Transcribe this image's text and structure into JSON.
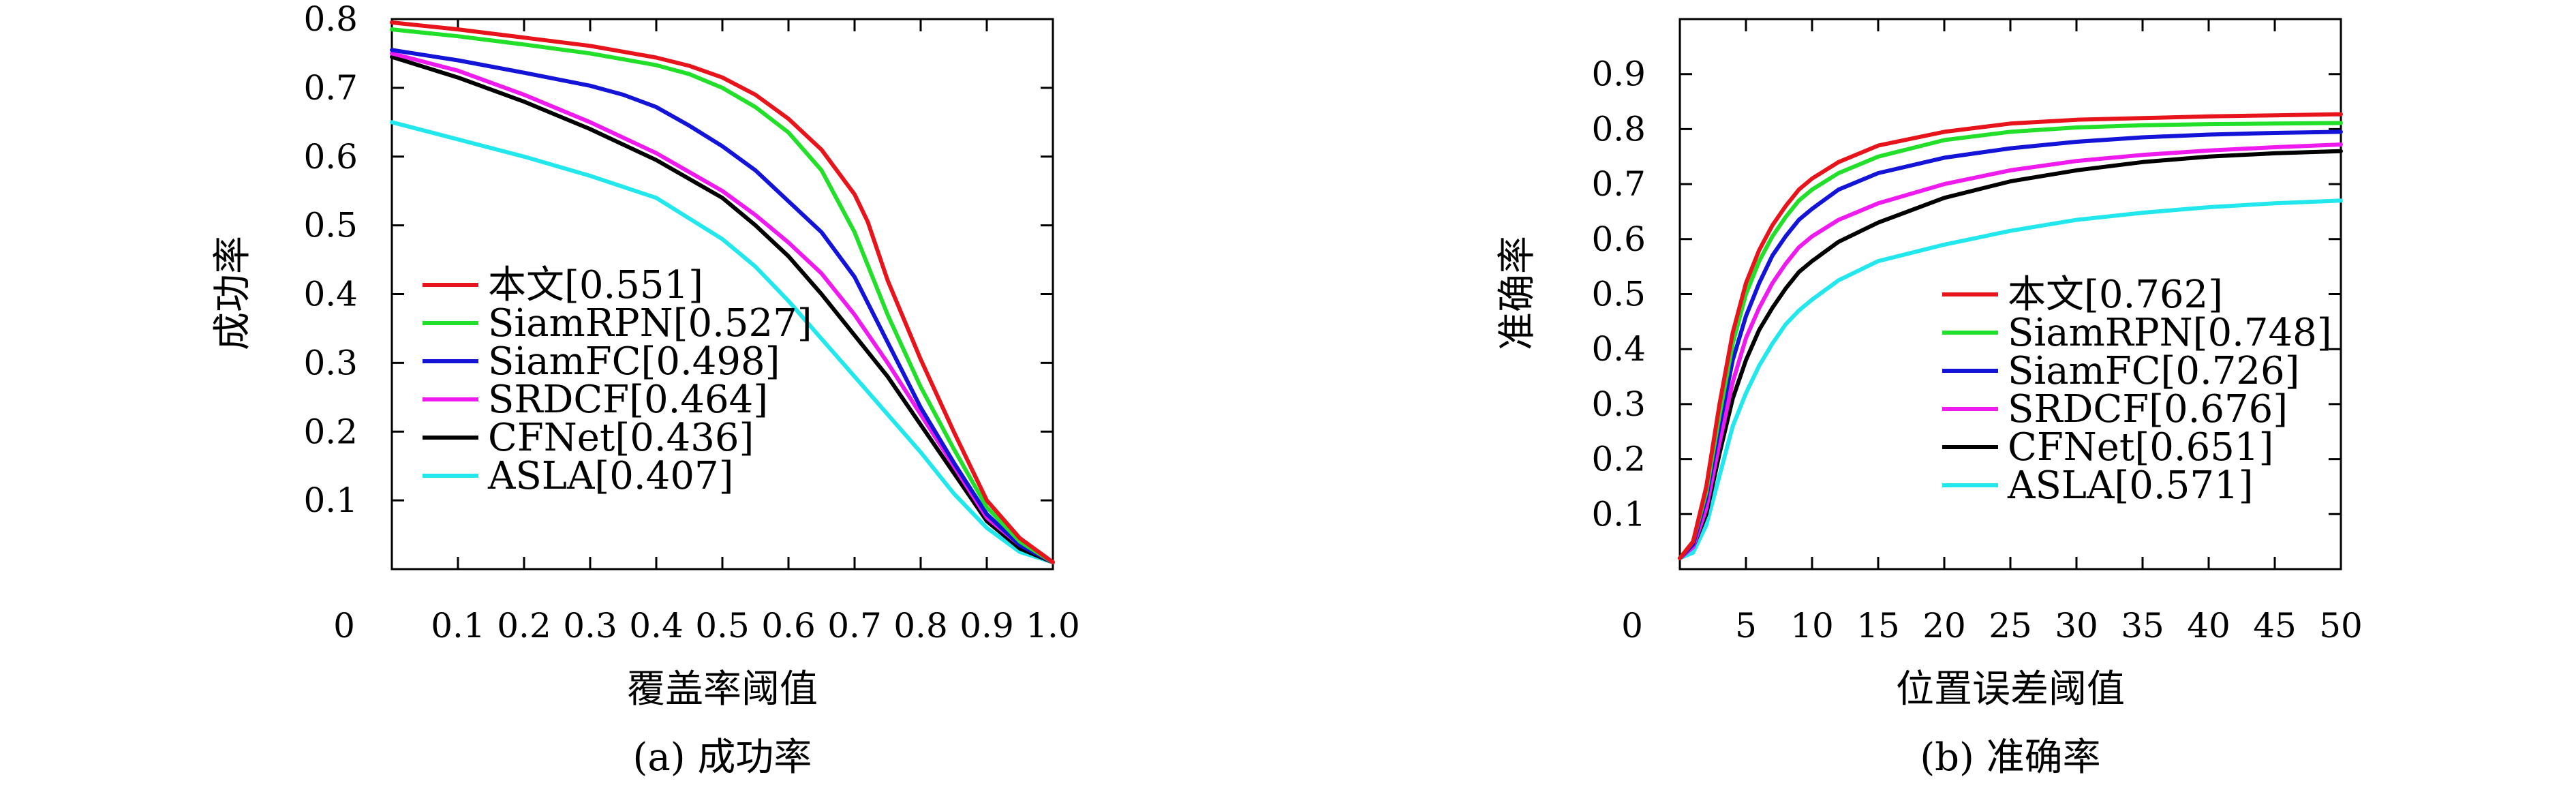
{
  "chart_data": [
    {
      "type": "line",
      "caption": "(a) 成功率",
      "xlabel": "覆盖率阈值",
      "ylabel": "成功率",
      "xlim": [
        0,
        1.0
      ],
      "ylim": [
        0,
        0.8
      ],
      "x_origin_label": "0",
      "xticks": [
        "0.1",
        "0.2",
        "0.3",
        "0.4",
        "0.5",
        "0.6",
        "0.7",
        "0.8",
        "0.9",
        "1.0"
      ],
      "yticks": [
        "0.1",
        "0.2",
        "0.3",
        "0.4",
        "0.5",
        "0.6",
        "0.7",
        "0.8"
      ],
      "grid": false,
      "legend_position": "lower-left",
      "series": [
        {
          "name": "本文[0.551]",
          "color": "#e8141b",
          "x": [
            0,
            0.1,
            0.2,
            0.3,
            0.4,
            0.45,
            0.5,
            0.55,
            0.6,
            0.65,
            0.7,
            0.72,
            0.75,
            0.8,
            0.85,
            0.9,
            0.95,
            1.0
          ],
          "y": [
            0.795,
            0.785,
            0.773,
            0.761,
            0.744,
            0.732,
            0.715,
            0.69,
            0.655,
            0.61,
            0.545,
            0.505,
            0.42,
            0.305,
            0.2,
            0.1,
            0.045,
            0.01
          ]
        },
        {
          "name": "SiamRPN[0.527]",
          "color": "#22e02a",
          "x": [
            0,
            0.1,
            0.2,
            0.3,
            0.4,
            0.45,
            0.5,
            0.55,
            0.6,
            0.65,
            0.7,
            0.75,
            0.8,
            0.85,
            0.9,
            0.95,
            1.0
          ],
          "y": [
            0.785,
            0.775,
            0.763,
            0.75,
            0.733,
            0.72,
            0.7,
            0.672,
            0.635,
            0.58,
            0.49,
            0.37,
            0.265,
            0.175,
            0.09,
            0.04,
            0.01
          ]
        },
        {
          "name": "SiamFC[0.498]",
          "color": "#1414d8",
          "x": [
            0,
            0.1,
            0.2,
            0.3,
            0.35,
            0.4,
            0.45,
            0.5,
            0.55,
            0.6,
            0.65,
            0.7,
            0.75,
            0.8,
            0.85,
            0.9,
            0.95,
            1.0
          ],
          "y": [
            0.755,
            0.74,
            0.722,
            0.703,
            0.69,
            0.672,
            0.645,
            0.615,
            0.58,
            0.535,
            0.49,
            0.425,
            0.33,
            0.235,
            0.155,
            0.08,
            0.035,
            0.01
          ]
        },
        {
          "name": "SRDCF[0.464]",
          "color": "#ee1aee",
          "x": [
            0,
            0.1,
            0.2,
            0.3,
            0.4,
            0.5,
            0.55,
            0.6,
            0.65,
            0.7,
            0.75,
            0.8,
            0.85,
            0.9,
            0.95,
            1.0
          ],
          "y": [
            0.75,
            0.725,
            0.69,
            0.65,
            0.605,
            0.55,
            0.515,
            0.475,
            0.43,
            0.37,
            0.3,
            0.225,
            0.15,
            0.075,
            0.035,
            0.01
          ]
        },
        {
          "name": "CFNet[0.436]",
          "color": "#000000",
          "x": [
            0,
            0.1,
            0.2,
            0.3,
            0.4,
            0.5,
            0.55,
            0.6,
            0.65,
            0.7,
            0.75,
            0.8,
            0.85,
            0.9,
            0.95,
            1.0
          ],
          "y": [
            0.745,
            0.715,
            0.68,
            0.64,
            0.595,
            0.54,
            0.5,
            0.455,
            0.4,
            0.34,
            0.28,
            0.21,
            0.14,
            0.07,
            0.03,
            0.01
          ]
        },
        {
          "name": "ASLA[0.407]",
          "color": "#22e8ee",
          "x": [
            0,
            0.1,
            0.2,
            0.3,
            0.4,
            0.5,
            0.55,
            0.6,
            0.65,
            0.7,
            0.75,
            0.8,
            0.85,
            0.9,
            0.95,
            1.0
          ],
          "y": [
            0.65,
            0.625,
            0.6,
            0.572,
            0.54,
            0.48,
            0.44,
            0.39,
            0.335,
            0.28,
            0.225,
            0.17,
            0.11,
            0.06,
            0.025,
            0.01
          ]
        }
      ]
    },
    {
      "type": "line",
      "caption": "(b) 准确率",
      "xlabel": "位置误差阈值",
      "ylabel": "准确率",
      "xlim": [
        0,
        50
      ],
      "ylim": [
        0,
        1.0
      ],
      "x_origin_label": "0",
      "xticks": [
        "5",
        "10",
        "15",
        "20",
        "25",
        "30",
        "35",
        "40",
        "45",
        "50"
      ],
      "yticks": [
        "0.1",
        "0.2",
        "0.3",
        "0.4",
        "0.5",
        "0.6",
        "0.7",
        "0.8",
        "0.9"
      ],
      "grid": false,
      "legend_position": "lower-right",
      "series": [
        {
          "name": "本文[0.762]",
          "color": "#e8141b",
          "x": [
            0,
            1,
            2,
            3,
            4,
            5,
            6,
            7,
            8,
            9,
            10,
            12,
            15,
            20,
            25,
            30,
            35,
            40,
            45,
            50
          ],
          "y": [
            0.02,
            0.05,
            0.15,
            0.3,
            0.43,
            0.52,
            0.58,
            0.625,
            0.66,
            0.69,
            0.71,
            0.74,
            0.77,
            0.795,
            0.81,
            0.817,
            0.82,
            0.823,
            0.825,
            0.827
          ]
        },
        {
          "name": "SiamRPN[0.748]",
          "color": "#22e02a",
          "x": [
            0,
            1,
            2,
            3,
            4,
            5,
            6,
            7,
            8,
            9,
            10,
            12,
            15,
            20,
            25,
            30,
            35,
            40,
            45,
            50
          ],
          "y": [
            0.02,
            0.05,
            0.14,
            0.28,
            0.41,
            0.5,
            0.56,
            0.605,
            0.64,
            0.67,
            0.69,
            0.72,
            0.75,
            0.78,
            0.795,
            0.803,
            0.807,
            0.809,
            0.81,
            0.811
          ]
        },
        {
          "name": "SiamFC[0.726]",
          "color": "#1414d8",
          "x": [
            0,
            1,
            2,
            3,
            4,
            5,
            6,
            7,
            8,
            9,
            10,
            12,
            15,
            20,
            25,
            30,
            35,
            40,
            45,
            50
          ],
          "y": [
            0.02,
            0.045,
            0.13,
            0.26,
            0.38,
            0.46,
            0.52,
            0.57,
            0.605,
            0.635,
            0.655,
            0.69,
            0.72,
            0.748,
            0.765,
            0.777,
            0.785,
            0.79,
            0.793,
            0.795
          ]
        },
        {
          "name": "SRDCF[0.676]",
          "color": "#ee1aee",
          "x": [
            0,
            1,
            2,
            3,
            4,
            5,
            6,
            7,
            8,
            9,
            10,
            12,
            15,
            20,
            25,
            30,
            35,
            40,
            45,
            50
          ],
          "y": [
            0.02,
            0.04,
            0.11,
            0.23,
            0.34,
            0.42,
            0.475,
            0.52,
            0.555,
            0.585,
            0.605,
            0.635,
            0.665,
            0.7,
            0.725,
            0.742,
            0.753,
            0.761,
            0.767,
            0.772
          ]
        },
        {
          "name": "CFNet[0.651]",
          "color": "#000000",
          "x": [
            0,
            1,
            2,
            3,
            4,
            5,
            6,
            7,
            8,
            9,
            10,
            12,
            15,
            20,
            25,
            30,
            35,
            40,
            45,
            50
          ],
          "y": [
            0.02,
            0.04,
            0.1,
            0.21,
            0.31,
            0.38,
            0.435,
            0.475,
            0.51,
            0.54,
            0.56,
            0.595,
            0.63,
            0.675,
            0.705,
            0.725,
            0.74,
            0.75,
            0.756,
            0.76
          ]
        },
        {
          "name": "ASLA[0.571]",
          "color": "#22e8ee",
          "x": [
            0,
            1,
            2,
            3,
            4,
            5,
            6,
            7,
            8,
            9,
            10,
            12,
            15,
            20,
            25,
            30,
            35,
            40,
            45,
            50
          ],
          "y": [
            0.02,
            0.03,
            0.08,
            0.17,
            0.26,
            0.32,
            0.37,
            0.41,
            0.445,
            0.47,
            0.49,
            0.525,
            0.56,
            0.59,
            0.615,
            0.635,
            0.648,
            0.658,
            0.665,
            0.67
          ]
        }
      ]
    }
  ]
}
